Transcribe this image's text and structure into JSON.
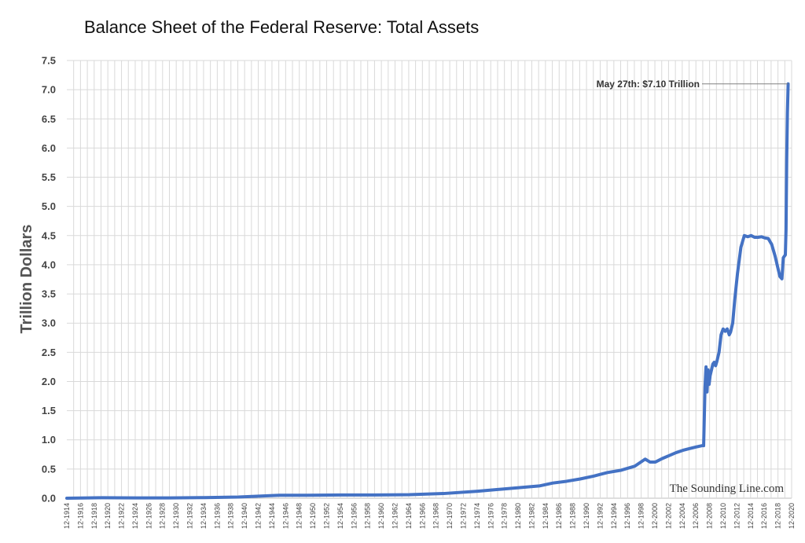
{
  "chart_data": {
    "type": "line",
    "title": "Balance Sheet of the Federal Reserve: Total Assets",
    "xlabel": "",
    "ylabel": "Trillion Dollars",
    "xlim": [
      1914.92,
      2020.92
    ],
    "ylim": [
      0,
      7.5
    ],
    "y_ticks": [
      "0.0",
      "0.5",
      "1.0",
      "1.5",
      "2.0",
      "2.5",
      "3.0",
      "3.5",
      "4.0",
      "4.5",
      "5.0",
      "5.5",
      "6.0",
      "6.5",
      "7.0",
      "7.5"
    ],
    "x_ticks": [
      "12-1914",
      "12-1916",
      "12-1918",
      "12-1920",
      "12-1922",
      "12-1924",
      "12-1926",
      "12-1928",
      "12-1930",
      "12-1932",
      "12-1934",
      "12-1936",
      "12-1938",
      "12-1940",
      "12-1942",
      "12-1944",
      "12-1946",
      "12-1948",
      "12-1950",
      "12-1952",
      "12-1954",
      "12-1956",
      "12-1958",
      "12-1960",
      "12-1962",
      "12-1964",
      "12-1966",
      "12-1968",
      "12-1970",
      "12-1972",
      "12-1974",
      "12-1976",
      "12-1978",
      "12-1980",
      "12-1982",
      "12-1984",
      "12-1986",
      "12-1988",
      "12-1990",
      "12-1992",
      "12-1994",
      "12-1996",
      "12-1998",
      "12-2000",
      "12-2002",
      "12-2004",
      "12-2006",
      "12-2008",
      "12-2010",
      "12-2012",
      "12-2014",
      "12-2016",
      "12-2018",
      "12-2020"
    ],
    "grid": true,
    "series_color": "#4472C4",
    "series": [
      {
        "x": [
          1914.92,
          1918.0,
          1920.0,
          1925.0,
          1930.0,
          1935.0,
          1940.0,
          1942.0,
          1944.0,
          1946.0,
          1948.0,
          1950.0,
          1955.0,
          1960.0,
          1965.0,
          1970.0,
          1975.0,
          1980.0,
          1984.0,
          1986.0,
          1988.0,
          1990.0,
          1992.0,
          1994.0,
          1996.0,
          1998.0,
          1999.5,
          2000.2,
          2001.0,
          2002.0,
          2003.0,
          2004.0,
          2005.0,
          2006.0,
          2007.0,
          2007.8,
          2008.05,
          2008.25,
          2008.4,
          2008.55,
          2008.7,
          2008.85,
          2009.0,
          2009.2,
          2009.4,
          2009.6,
          2009.8,
          2010.0,
          2010.3,
          2010.6,
          2010.9,
          2011.2,
          2011.5,
          2011.8,
          2012.0,
          2012.3,
          2012.6,
          2013.0,
          2013.5,
          2014.0,
          2014.5,
          2015.0,
          2015.5,
          2016.0,
          2016.5,
          2017.0,
          2017.5,
          2018.0,
          2018.5,
          2018.9,
          2019.2,
          2019.5,
          2019.7,
          2020.0,
          2020.1,
          2020.2,
          2020.3,
          2020.41
        ],
        "y": [
          0.0,
          0.005,
          0.008,
          0.005,
          0.005,
          0.01,
          0.02,
          0.03,
          0.04,
          0.05,
          0.05,
          0.05,
          0.055,
          0.055,
          0.06,
          0.08,
          0.12,
          0.17,
          0.21,
          0.26,
          0.29,
          0.33,
          0.38,
          0.44,
          0.48,
          0.55,
          0.67,
          0.62,
          0.62,
          0.68,
          0.73,
          0.78,
          0.82,
          0.85,
          0.88,
          0.9,
          0.9,
          1.9,
          2.25,
          1.82,
          2.2,
          1.95,
          2.1,
          2.2,
          2.3,
          2.33,
          2.27,
          2.35,
          2.5,
          2.8,
          2.9,
          2.86,
          2.9,
          2.8,
          2.85,
          3.0,
          3.4,
          3.85,
          4.3,
          4.5,
          4.48,
          4.5,
          4.47,
          4.47,
          4.48,
          4.46,
          4.45,
          4.35,
          4.15,
          3.95,
          3.8,
          3.76,
          4.12,
          4.17,
          4.6,
          5.8,
          6.6,
          7.1
        ]
      }
    ],
    "annotations": [
      {
        "text": "May 27th: $7.10 Trillion",
        "x": 2020.41,
        "y": 7.1
      }
    ]
  },
  "watermark": {
    "text": "The Sounding Line.com"
  }
}
